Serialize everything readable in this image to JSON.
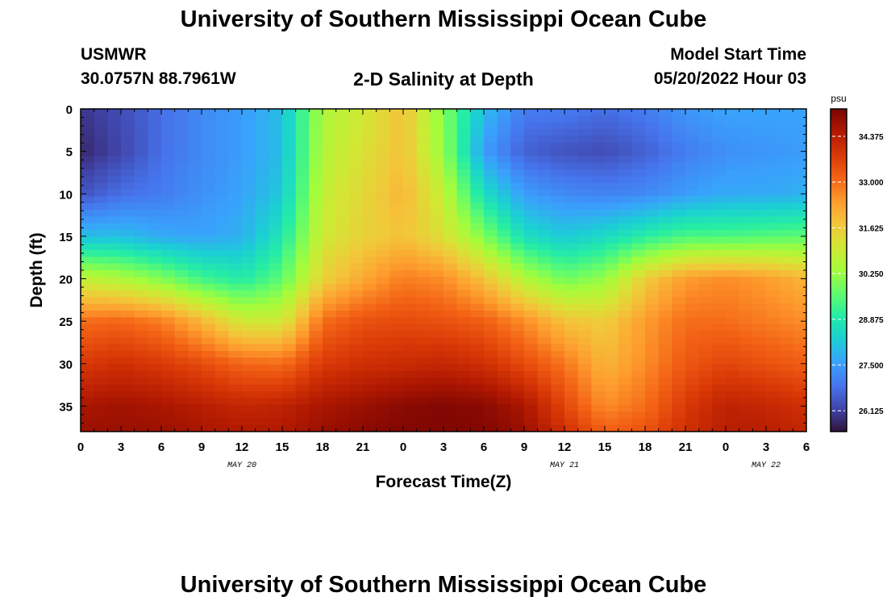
{
  "page": {
    "title": "University of Southern Mississippi Ocean Cube",
    "footer_title": "University of Southern Mississippi Ocean Cube"
  },
  "header": {
    "station": "USMWR",
    "coords": "30.0757N  88.7961W",
    "subtitle": "2-D Salinity at Depth",
    "start_label": "Model Start Time",
    "start_value": "05/20/2022 Hour 03"
  },
  "chart_data": {
    "type": "heatmap",
    "title": "2-D Salinity at Depth",
    "xlabel": "Forecast Time(Z)",
    "ylabel": "Depth (ft)",
    "x_unit": "forecast hours from 05/20 00Z",
    "xlim": [
      0,
      54
    ],
    "ylim": [
      38,
      0
    ],
    "x_ticks": [
      0,
      3,
      6,
      9,
      12,
      15,
      18,
      21,
      24,
      27,
      30,
      33,
      36,
      39,
      42,
      45,
      48,
      51,
      54
    ],
    "x_tick_labels": [
      "0",
      "3",
      "6",
      "9",
      "12",
      "15",
      "18",
      "21",
      "0",
      "3",
      "6",
      "9",
      "12",
      "15",
      "18",
      "21",
      "0",
      "3",
      "6"
    ],
    "y_ticks": [
      0,
      5,
      10,
      15,
      20,
      25,
      30,
      35
    ],
    "y_tick_labels": [
      "0",
      "5",
      "10",
      "15",
      "20",
      "25",
      "30",
      "35"
    ],
    "date_labels": [
      {
        "label": "MAY 20",
        "x": 12
      },
      {
        "label": "MAY 21",
        "x": 36
      },
      {
        "label": "MAY 22",
        "x": 51
      }
    ],
    "colorbar": {
      "unit": "psu",
      "vmin": 25.5,
      "vmax": 35.2,
      "ticks": [
        26.125,
        27.5,
        28.875,
        30.25,
        31.625,
        33.0,
        34.375
      ],
      "tick_labels": [
        "26.125",
        "27.500",
        "28.875",
        "30.250",
        "31.625",
        "33.000",
        "34.375"
      ],
      "colormap": [
        "#30123b",
        "#4145ab",
        "#4675ed",
        "#39a2fc",
        "#1bcfd4",
        "#24eca6",
        "#61fc6c",
        "#a4fc3b",
        "#d1e834",
        "#f3c63a",
        "#fe9b2d",
        "#f36315",
        "#d93806",
        "#b11901",
        "#7a0402"
      ]
    },
    "x_columns": [
      0,
      3,
      6,
      9,
      12,
      15,
      18,
      21,
      24,
      27,
      30,
      33,
      36,
      39,
      42,
      45,
      48,
      51,
      54
    ],
    "depths": [
      0,
      5,
      10,
      15,
      20,
      25,
      30,
      35,
      38
    ],
    "grid_values": [
      [
        26.0,
        26.3,
        26.8,
        27.2,
        27.5,
        28.0,
        30.5,
        31.0,
        31.8,
        30.0,
        28.0,
        27.0,
        27.0,
        26.8,
        27.0,
        27.4,
        27.6,
        27.6,
        27.6
      ],
      [
        25.8,
        26.2,
        26.8,
        27.2,
        27.5,
        28.0,
        30.6,
        31.2,
        31.8,
        30.2,
        27.5,
        26.6,
        26.4,
        26.3,
        26.6,
        27.0,
        27.3,
        27.4,
        27.5
      ],
      [
        26.4,
        26.8,
        27.0,
        27.3,
        27.6,
        28.2,
        30.8,
        31.4,
        32.0,
        30.8,
        28.6,
        27.5,
        27.2,
        27.1,
        27.2,
        27.5,
        27.7,
        27.7,
        27.8
      ],
      [
        28.0,
        28.0,
        27.7,
        27.6,
        27.8,
        28.8,
        31.0,
        31.5,
        31.8,
        31.2,
        30.0,
        28.6,
        28.2,
        28.5,
        29.0,
        29.4,
        29.4,
        29.5,
        29.6
      ],
      [
        30.8,
        30.5,
        30.0,
        29.3,
        28.9,
        29.6,
        31.5,
        32.2,
        32.8,
        32.6,
        31.8,
        30.6,
        29.8,
        30.2,
        31.6,
        32.4,
        32.6,
        32.4,
        32.0
      ],
      [
        33.0,
        33.1,
        32.8,
        32.0,
        31.0,
        31.0,
        33.0,
        33.4,
        33.5,
        33.4,
        33.2,
        32.6,
        31.8,
        31.6,
        32.4,
        33.0,
        33.0,
        32.8,
        32.6
      ],
      [
        33.8,
        34.0,
        33.8,
        33.5,
        33.1,
        33.0,
        33.8,
        34.0,
        34.1,
        34.2,
        34.0,
        33.5,
        32.9,
        32.0,
        32.6,
        33.3,
        33.6,
        33.4,
        33.2
      ],
      [
        34.6,
        34.7,
        34.6,
        34.4,
        34.2,
        34.3,
        34.6,
        34.8,
        35.0,
        35.1,
        35.0,
        34.6,
        33.6,
        32.6,
        33.0,
        33.8,
        34.3,
        34.2,
        34.0
      ],
      [
        34.8,
        34.8,
        34.8,
        34.6,
        34.5,
        34.5,
        34.8,
        35.0,
        35.1,
        35.1,
        35.1,
        34.8,
        34.0,
        33.2,
        33.4,
        34.0,
        34.4,
        34.4,
        34.2
      ]
    ]
  }
}
